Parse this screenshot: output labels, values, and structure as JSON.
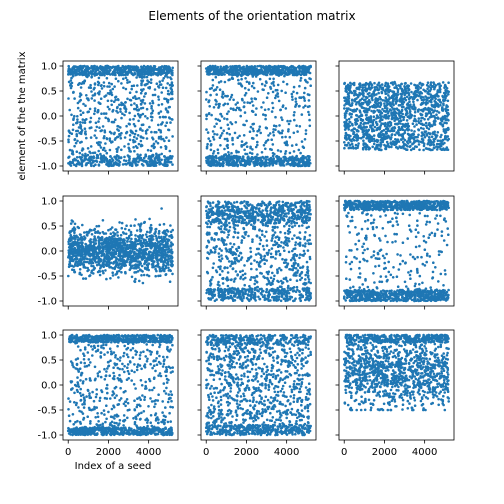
{
  "figure": {
    "title": "Elements of the orientation matrix",
    "xlabel": "Index of a seed",
    "ylabel": "element of the the matrix"
  },
  "chart_data": {
    "type": "scatter",
    "title": "Elements of the orientation matrix",
    "xlabel": "Index of a seed",
    "ylabel": "element of the the matrix",
    "n_points_per_panel": 5200,
    "x_range": [
      0,
      5200
    ],
    "xlim": [
      -260,
      5460
    ],
    "x_ticks": [
      0,
      2000,
      4000
    ],
    "x_tick_labels": [
      "0",
      "2000",
      "4000"
    ],
    "y_ticks": [
      -1.0,
      -0.5,
      0.0,
      0.5,
      1.0
    ],
    "y_tick_labels": [
      "-1.0",
      "-0.5",
      "0.0",
      "0.5",
      "1.0"
    ],
    "grid": false,
    "legend": "none",
    "marker_color": "#1f77b4",
    "panels": [
      {
        "row": 1,
        "col": 1,
        "ylim": [
          -1.1,
          1.1
        ],
        "distribution": "dense near +1 and -1, spread across range, gap near 0 in middle"
      },
      {
        "row": 1,
        "col": 2,
        "ylim": [
          -1.1,
          1.1
        ],
        "distribution": "dense bands near +1 and -1, sparse middle"
      },
      {
        "row": 1,
        "col": 3,
        "ylim": [
          -1.1,
          1.1
        ],
        "distribution": "uniform band between -0.7 and 0.7"
      },
      {
        "row": 2,
        "col": 1,
        "ylim": [
          -1.1,
          1.1
        ],
        "distribution": "concentrated near 0, range about -0.8 to 0.8"
      },
      {
        "row": 2,
        "col": 2,
        "ylim": [
          -1.1,
          1.1
        ],
        "distribution": "dense band -0.9 to 0.9, clusters near +0.6 and -0.8"
      },
      {
        "row": 2,
        "col": 3,
        "ylim": [
          -1.1,
          1.1
        ],
        "distribution": "dense bands near +0.9 and -0.9, sparse middle"
      },
      {
        "row": 3,
        "col": 1,
        "ylim": [
          -1.1,
          1.1
        ],
        "distribution": "dense near +1 and -1, spread across range"
      },
      {
        "row": 3,
        "col": 2,
        "ylim": [
          -1.1,
          1.1
        ],
        "distribution": "spread across -1 to 1, denser below 0"
      },
      {
        "row": 3,
        "col": 3,
        "ylim": [
          -1.1,
          1.1
        ],
        "distribution": "mostly -0.4 to 1.0, dense near 0 to 0.5 and near 1"
      }
    ]
  }
}
